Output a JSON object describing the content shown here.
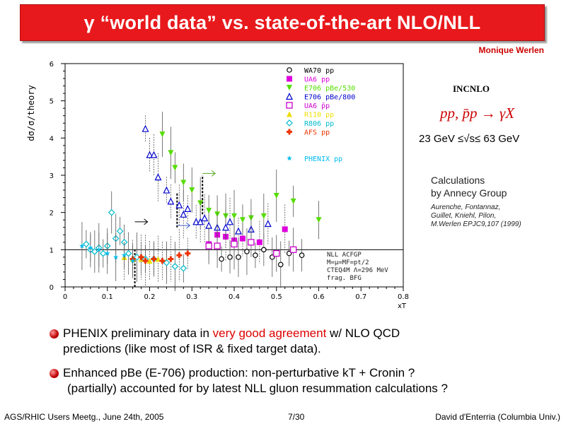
{
  "slide": {
    "title": "γ “world data” vs. state-of-the-art  NLO/NLL",
    "author": "Monique Werlen",
    "incnlo": "INCNLO",
    "process": "pp, p̄p → γX",
    "energy_range": "23 GeV ≤√s≤ 63 GeV",
    "calc_line1": "Calculations",
    "calc_line2": "by Annecy Group",
    "reference_lines": [
      "Aurenche, Fontannaz,",
      "Guillet, Kniehl, Pilon,",
      "M.Werlen  EPJC9,107 (1999)"
    ],
    "bullet1_a": "PHENIX preliminary data in ",
    "bullet1_hl": "very good agreement",
    "bullet1_b": " w/ NLO QCD",
    "bullet1_line2": "predictions (like most of ISR & fixed target data).",
    "bullet2_line1": "Enhanced pBe (E-706) production: non-perturbative kT + Cronin ?",
    "bullet2_line2": "(partially) accounted for by latest NLL gluon resummation calculations ?",
    "footer_left": "AGS/RHIC Users Meetg., June 24th, 2005",
    "footer_center": "7/30",
    "footer_right": "David d'Enterria (Columbia Univ.)"
  },
  "colors": {
    "title_bg": "#e8191c",
    "accent": "#dd0000"
  },
  "chart_data": {
    "type": "scatter",
    "ylabel": "dσ/σ/theory",
    "xlabel": "xT",
    "xlim": [
      0,
      0.8
    ],
    "ylim": [
      0,
      6
    ],
    "x_ticks": [
      "0",
      "0.1",
      "0.2",
      "0.3",
      "0.4",
      "0.5",
      "0.6",
      "0.7",
      "0.8"
    ],
    "y_ticks": [
      "0",
      "1",
      "2",
      "3",
      "4",
      "5",
      "6"
    ],
    "reference_line_y": 1,
    "legend_placement": "top-right",
    "annotation_lines": [
      "NLL ACFGP",
      "M=μ=MF=pt/2",
      "CTEQ4M Λ=296 MeV",
      "frag. BFG"
    ],
    "series": [
      {
        "name": "WA70 pp",
        "marker": "circle-open",
        "color": "#000000",
        "points": [
          [
            0.37,
            0.75
          ],
          [
            0.39,
            0.8
          ],
          [
            0.41,
            0.8
          ],
          [
            0.43,
            0.95
          ],
          [
            0.45,
            0.85
          ],
          [
            0.47,
            1.0
          ],
          [
            0.49,
            0.8
          ],
          [
            0.51,
            0.6
          ],
          [
            0.53,
            0.9
          ],
          [
            0.56,
            0.85
          ]
        ]
      },
      {
        "name": "UA6 pp",
        "marker": "square-filled",
        "color": "#dd00dd",
        "points": [
          [
            0.34,
            1.15
          ],
          [
            0.36,
            1.4
          ],
          [
            0.38,
            1.35
          ],
          [
            0.4,
            1.25
          ],
          [
            0.42,
            1.3
          ],
          [
            0.46,
            1.2
          ],
          [
            0.52,
            1.55
          ]
        ]
      },
      {
        "name": "E706 pBe/530",
        "marker": "triangle-down-filled",
        "color": "#55dd00",
        "points": [
          [
            0.23,
            4.1
          ],
          [
            0.25,
            3.6
          ],
          [
            0.26,
            3.2
          ],
          [
            0.28,
            2.8
          ],
          [
            0.3,
            2.6
          ],
          [
            0.32,
            2.25
          ],
          [
            0.34,
            2.05
          ],
          [
            0.36,
            1.95
          ],
          [
            0.38,
            1.9
          ],
          [
            0.4,
            1.9
          ],
          [
            0.42,
            1.8
          ],
          [
            0.44,
            1.85
          ],
          [
            0.47,
            1.9
          ],
          [
            0.5,
            2.45
          ],
          [
            0.54,
            2.3
          ],
          [
            0.6,
            1.8
          ]
        ]
      },
      {
        "name": "E706 pBe/800",
        "marker": "triangle-up-open",
        "color": "#0000cc",
        "points": [
          [
            0.19,
            4.25
          ],
          [
            0.2,
            3.55
          ],
          [
            0.21,
            3.55
          ],
          [
            0.22,
            2.95
          ],
          [
            0.24,
            2.6
          ],
          [
            0.25,
            2.3
          ],
          [
            0.27,
            2.2
          ],
          [
            0.28,
            1.95
          ],
          [
            0.29,
            2.1
          ],
          [
            0.31,
            1.75
          ],
          [
            0.32,
            1.75
          ],
          [
            0.33,
            1.85
          ],
          [
            0.34,
            1.65
          ],
          [
            0.36,
            1.6
          ],
          [
            0.38,
            1.6
          ],
          [
            0.39,
            1.75
          ],
          [
            0.41,
            1.5
          ],
          [
            0.44,
            1.55
          ],
          [
            0.48,
            1.7
          ]
        ]
      },
      {
        "name": "UA6 p̄p",
        "marker": "square-open",
        "color": "#cc00cc",
        "points": [
          [
            0.34,
            1.1
          ],
          [
            0.36,
            1.1
          ],
          [
            0.4,
            1.15
          ],
          [
            0.44,
            1.2
          ],
          [
            0.5,
            0.9
          ],
          [
            0.54,
            1.0
          ]
        ]
      },
      {
        "name": "R110 pp",
        "marker": "triangle-up-filled",
        "color": "#eedd00",
        "points": [
          [
            0.14,
            0.8
          ],
          [
            0.16,
            0.75
          ],
          [
            0.18,
            0.75
          ],
          [
            0.2,
            0.7
          ],
          [
            0.22,
            0.75
          ],
          [
            0.24,
            0.7
          ]
        ]
      },
      {
        "name": "R806 pp",
        "marker": "diamond-open",
        "color": "#00bbcc",
        "points": [
          [
            0.05,
            1.15
          ],
          [
            0.06,
            1.0
          ],
          [
            0.07,
            0.95
          ],
          [
            0.08,
            1.05
          ],
          [
            0.09,
            0.9
          ],
          [
            0.1,
            1.1
          ],
          [
            0.11,
            2.0
          ],
          [
            0.12,
            1.3
          ],
          [
            0.13,
            1.5
          ],
          [
            0.14,
            1.2
          ],
          [
            0.15,
            0.9
          ],
          [
            0.17,
            0.8
          ],
          [
            0.19,
            0.75
          ],
          [
            0.21,
            0.75
          ],
          [
            0.24,
            0.65
          ],
          [
            0.26,
            0.55
          ],
          [
            0.28,
            0.5
          ]
        ]
      },
      {
        "name": "AFS pp",
        "marker": "cross-filled",
        "color": "#ee3300",
        "points": [
          [
            0.16,
            0.75
          ],
          [
            0.18,
            0.8
          ],
          [
            0.19,
            0.7
          ],
          [
            0.21,
            0.75
          ],
          [
            0.23,
            0.7
          ],
          [
            0.25,
            0.75
          ],
          [
            0.27,
            0.85
          ],
          [
            0.29,
            0.9
          ]
        ]
      },
      {
        "name": "PHENIX pp",
        "marker": "star",
        "color": "#00bbee",
        "points": [
          [
            0.04,
            1.1
          ],
          [
            0.06,
            1.05
          ],
          [
            0.08,
            1.0
          ],
          [
            0.1,
            0.9
          ],
          [
            0.12,
            0.8
          ],
          [
            0.14,
            0.85
          ],
          [
            0.16,
            0.7
          ]
        ]
      }
    ]
  }
}
